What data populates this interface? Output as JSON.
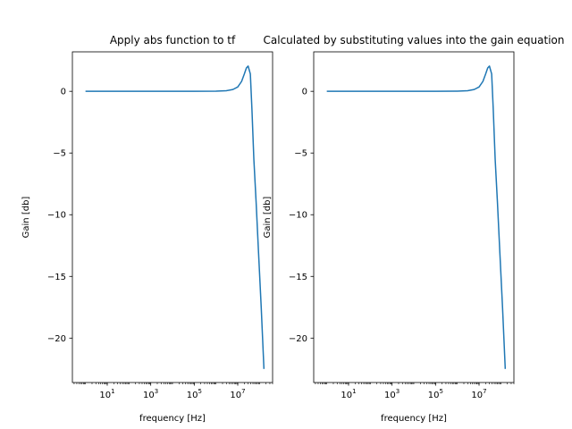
{
  "chart_data": [
    {
      "type": "line",
      "title": "Apply abs function to tf",
      "xlabel": "frequency [Hz]",
      "ylabel": "Gain [db]",
      "xscale": "log",
      "xlim": [
        0.25,
        400000000
      ],
      "ylim": [
        -23.6,
        3.2
      ],
      "xticks": [
        10,
        1000,
        100000,
        10000000
      ],
      "xtick_labels": [
        [
          "10",
          "1"
        ],
        [
          "10",
          "3"
        ],
        [
          "10",
          "5"
        ],
        [
          "10",
          "7"
        ]
      ],
      "yticks": [
        0,
        -5,
        -10,
        -15,
        -20
      ],
      "ytick_labels": [
        "0",
        "−5",
        "−10",
        "−15",
        "−20"
      ],
      "grid": false,
      "series": [
        {
          "color": "#1f77b4",
          "x": [
            1,
            10,
            100,
            1000,
            10000,
            100000,
            1000000,
            3000000,
            6000000,
            10000000,
            15000000,
            20000000,
            25000000,
            30000000,
            38000000,
            45000000,
            55000000,
            70000000,
            90000000,
            120000000,
            160000000
          ],
          "y": [
            0,
            0,
            0,
            0,
            0,
            0,
            0.01,
            0.05,
            0.15,
            0.35,
            0.8,
            1.4,
            1.9,
            2.05,
            1.4,
            -1.5,
            -5.5,
            -9.0,
            -13.0,
            -17.5,
            -22.5
          ]
        }
      ]
    },
    {
      "type": "line",
      "title": "Calculated by substituting values into the gain equation",
      "xlabel": "frequency [Hz]",
      "ylabel": "Gain [db]",
      "xscale": "log",
      "xlim": [
        0.25,
        400000000
      ],
      "ylim": [
        -23.6,
        3.2
      ],
      "xticks": [
        10,
        1000,
        100000,
        10000000
      ],
      "xtick_labels": [
        [
          "10",
          "1"
        ],
        [
          "10",
          "3"
        ],
        [
          "10",
          "5"
        ],
        [
          "10",
          "7"
        ]
      ],
      "yticks": [
        0,
        -5,
        -10,
        -15,
        -20
      ],
      "ytick_labels": [
        "0",
        "−5",
        "−10",
        "−15",
        "−20"
      ],
      "grid": false,
      "series": [
        {
          "color": "#1f77b4",
          "x": [
            1,
            10,
            100,
            1000,
            10000,
            100000,
            1000000,
            3000000,
            6000000,
            10000000,
            15000000,
            20000000,
            25000000,
            30000000,
            38000000,
            45000000,
            55000000,
            70000000,
            90000000,
            120000000,
            160000000
          ],
          "y": [
            0,
            0,
            0,
            0,
            0,
            0,
            0.01,
            0.05,
            0.15,
            0.35,
            0.8,
            1.4,
            1.9,
            2.05,
            1.4,
            -1.5,
            -5.5,
            -9.0,
            -13.0,
            -17.5,
            -22.5
          ]
        }
      ]
    }
  ]
}
